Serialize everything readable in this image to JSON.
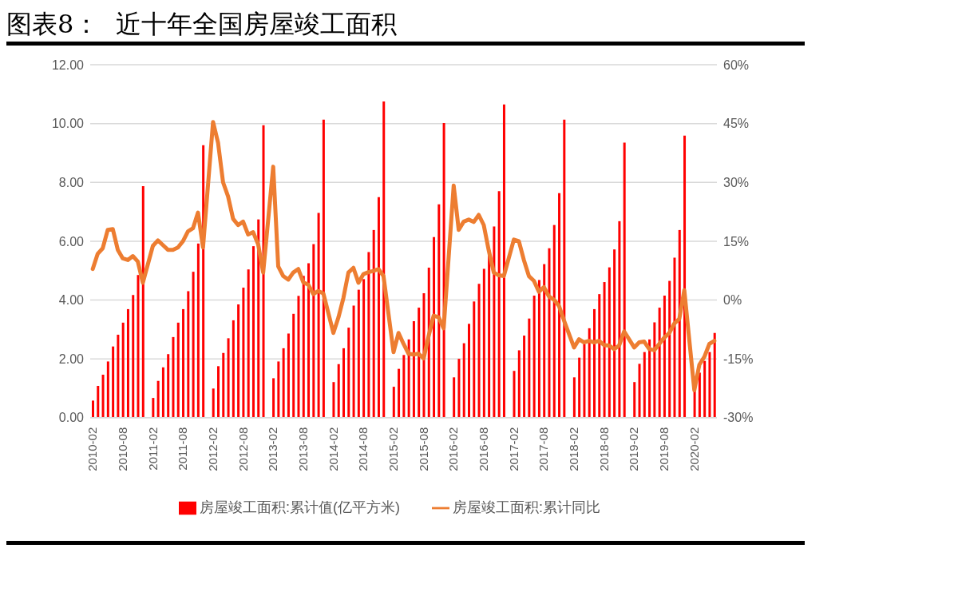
{
  "chart_data": {
    "type": "bar",
    "title": "图表8：  近十年全国房屋竣工面积",
    "categories": [
      "2010-02",
      null,
      null,
      null,
      null,
      null,
      "2010-08",
      null,
      null,
      null,
      null,
      null,
      "2011-02",
      null,
      null,
      null,
      null,
      null,
      "2011-08",
      null,
      null,
      null,
      null,
      null,
      "2012-02",
      null,
      null,
      null,
      null,
      null,
      "2012-08",
      null,
      null,
      null,
      null,
      null,
      "2013-02",
      null,
      null,
      null,
      null,
      null,
      "2013-08",
      null,
      null,
      null,
      null,
      null,
      "2014-02",
      null,
      null,
      null,
      null,
      null,
      "2014-08",
      null,
      null,
      null,
      null,
      null,
      "2015-02",
      null,
      null,
      null,
      null,
      null,
      "2015-08",
      null,
      null,
      null,
      null,
      null,
      "2016-02",
      null,
      null,
      null,
      null,
      null,
      "2016-08",
      null,
      null,
      null,
      null,
      null,
      "2017-02",
      null,
      null,
      null,
      null,
      null,
      "2017-08",
      null,
      null,
      null,
      null,
      null,
      "2018-02",
      null,
      null,
      null,
      null,
      null,
      "2018-08",
      null,
      null,
      null,
      null,
      null,
      "2019-02",
      null,
      null,
      null,
      null,
      null,
      "2019-08",
      null,
      null,
      null,
      null,
      null,
      "2020-02",
      null,
      null,
      null,
      null
    ],
    "series": [
      {
        "name": "房屋竣工面积:累计值(亿平方米)",
        "color": "#ff0000",
        "values": [
          0.58,
          1.08,
          1.46,
          1.91,
          2.42,
          2.82,
          3.23,
          3.69,
          4.17,
          4.85,
          7.87,
          null,
          0.67,
          1.25,
          1.71,
          2.16,
          2.74,
          3.23,
          3.69,
          4.3,
          4.96,
          5.92,
          9.26,
          null,
          0.99,
          1.75,
          2.2,
          2.7,
          3.31,
          3.85,
          4.42,
          5.04,
          5.83,
          6.74,
          9.94,
          null,
          1.34,
          1.91,
          2.36,
          2.86,
          3.53,
          4.14,
          4.82,
          5.25,
          5.9,
          6.96,
          10.13,
          null,
          1.21,
          1.82,
          2.36,
          3.06,
          3.81,
          4.35,
          4.71,
          5.63,
          6.38,
          7.5,
          10.75,
          null,
          1.05,
          1.66,
          2.13,
          2.66,
          3.28,
          3.74,
          4.23,
          5.1,
          6.14,
          7.25,
          10.02,
          null,
          1.37,
          2.0,
          2.53,
          3.19,
          3.95,
          4.55,
          5.06,
          5.72,
          6.5,
          7.7,
          10.65,
          null,
          1.59,
          2.29,
          2.79,
          3.37,
          4.15,
          4.68,
          5.22,
          5.76,
          6.55,
          7.63,
          10.13,
          null,
          1.37,
          2.04,
          2.5,
          3.04,
          3.69,
          4.2,
          4.61,
          5.11,
          5.72,
          6.68,
          9.35,
          null,
          1.21,
          1.83,
          2.23,
          2.66,
          3.24,
          3.74,
          4.15,
          4.65,
          5.44,
          6.38,
          9.59,
          null,
          1.0,
          1.53,
          1.93,
          2.23,
          2.88
        ]
      },
      {
        "name": "房屋竣工面积:累计同比",
        "type": "line",
        "axis": "y2",
        "color": "#ed7d31",
        "values": [
          7.9,
          11.8,
          13.2,
          17.9,
          18.1,
          12.8,
          10.6,
          10.2,
          11.2,
          9.8,
          4.4,
          null,
          13.8,
          15.2,
          14.0,
          12.8,
          12.8,
          13.4,
          15.0,
          17.5,
          18.3,
          22.3,
          13.4,
          null,
          45.4,
          40.1,
          30.0,
          26.4,
          20.7,
          19.1,
          20.0,
          16.7,
          17.3,
          14.2,
          7.0,
          null,
          34.0,
          8.6,
          6.1,
          5.2,
          7.0,
          7.9,
          4.5,
          3.9,
          1.5,
          2.3,
          1.7,
          null,
          -8.4,
          -4.5,
          0.5,
          7.0,
          8.2,
          4.4,
          6.6,
          7.1,
          7.4,
          7.9,
          6.1,
          null,
          -13.3,
          -8.4,
          -11.2,
          -13.7,
          -13.9,
          -13.7,
          -14.9,
          -9.2,
          -4.0,
          -4.4,
          -7.2,
          null,
          29.2,
          17.9,
          20.0,
          20.5,
          19.9,
          21.7,
          19.1,
          12.6,
          7.0,
          6.3,
          6.1,
          null,
          15.4,
          15.0,
          10.2,
          6.1,
          4.9,
          2.1,
          3.3,
          0.9,
          0.1,
          -1.5,
          -5.2,
          null,
          -12.1,
          -10.0,
          -10.8,
          -10.4,
          -10.8,
          -10.4,
          -11.5,
          -11.6,
          -12.5,
          -11.6,
          -8.0,
          null,
          -12.1,
          -10.8,
          -10.6,
          -12.5,
          -12.8,
          -11.2,
          -9.6,
          -8.4,
          -6.0,
          -4.8,
          2.5,
          null,
          -23.0,
          -16.5,
          -14.5,
          -11.2,
          -10.4
        ]
      }
    ],
    "ylim": [
      0,
      12
    ],
    "yticks": [
      {
        "value": 0,
        "label": "0.00"
      },
      {
        "value": 2,
        "label": "2.00"
      },
      {
        "value": 4,
        "label": "4.00"
      },
      {
        "value": 6,
        "label": "6.00"
      },
      {
        "value": 8,
        "label": "8.00"
      },
      {
        "value": 10,
        "label": "10.00"
      },
      {
        "value": 12,
        "label": "12.00"
      }
    ],
    "y2lim": [
      -30,
      60
    ],
    "y2ticks": [
      {
        "value": -30,
        "label": "-30%"
      },
      {
        "value": -15,
        "label": "-15%"
      },
      {
        "value": 0,
        "label": "0%"
      },
      {
        "value": 15,
        "label": "15%"
      },
      {
        "value": 30,
        "label": "30%"
      },
      {
        "value": 45,
        "label": "45%"
      },
      {
        "value": 60,
        "label": "60%"
      }
    ],
    "grid": "y",
    "legend": "bottom",
    "marker": "none",
    "line_style": "solid"
  }
}
